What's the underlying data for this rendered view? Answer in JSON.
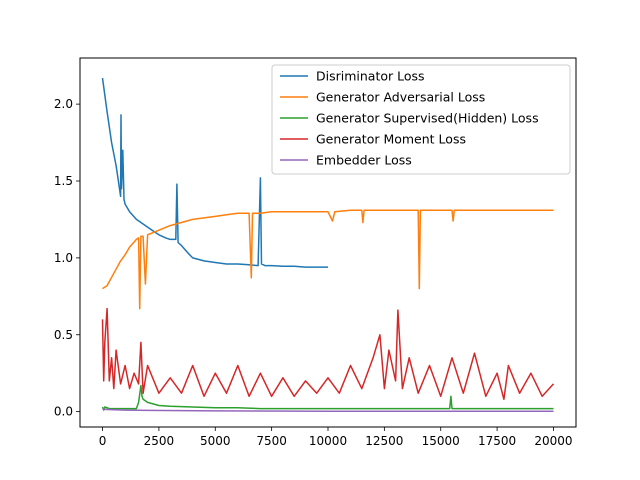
{
  "chart_data": {
    "type": "line",
    "title": "",
    "xlabel": "",
    "ylabel": "",
    "xlim": [
      -1000,
      21000
    ],
    "ylim": [
      -0.1,
      2.3
    ],
    "xticks": [
      0,
      2500,
      5000,
      7500,
      10000,
      12500,
      15000,
      17500,
      20000
    ],
    "xtick_labels": [
      "0",
      "2500",
      "5000",
      "7500",
      "10000",
      "12500",
      "15000",
      "17500",
      "20000"
    ],
    "yticks": [
      0.0,
      0.5,
      1.0,
      1.5,
      2.0
    ],
    "ytick_labels": [
      "0.0",
      "0.5",
      "1.0",
      "1.5",
      "2.0"
    ],
    "grid": false,
    "legend_position": "upper-right",
    "series": [
      {
        "name": "Disriminator Loss",
        "color": "#1f77b4",
        "x": [
          0,
          200,
          400,
          600,
          750,
          800,
          820,
          840,
          900,
          950,
          1000,
          1200,
          1500,
          1800,
          2000,
          2200,
          2500,
          2800,
          3000,
          3250,
          3300,
          3350,
          3500,
          3800,
          4000,
          4500,
          5000,
          5500,
          6000,
          6500,
          6900,
          7000,
          7050,
          7200,
          7500,
          8000,
          8500,
          9000,
          9500,
          10000
        ],
        "y": [
          2.17,
          1.95,
          1.75,
          1.6,
          1.45,
          1.4,
          1.93,
          1.45,
          1.7,
          1.38,
          1.35,
          1.3,
          1.25,
          1.22,
          1.2,
          1.18,
          1.15,
          1.13,
          1.12,
          1.12,
          1.48,
          1.1,
          1.08,
          1.03,
          1.0,
          0.98,
          0.97,
          0.96,
          0.96,
          0.955,
          0.95,
          1.52,
          0.96,
          0.95,
          0.95,
          0.945,
          0.945,
          0.94,
          0.94,
          0.94
        ]
      },
      {
        "name": "Generator Adversarial Loss",
        "color": "#ff7f0e",
        "x": [
          0,
          200,
          500,
          800,
          1000,
          1200,
          1500,
          1600,
          1650,
          1700,
          1800,
          1900,
          2000,
          2500,
          3000,
          3500,
          4000,
          4500,
          5000,
          5500,
          6000,
          6500,
          6600,
          6650,
          6700,
          7000,
          7500,
          8000,
          9000,
          10000,
          10200,
          10300,
          11000,
          11500,
          11550,
          11600,
          12000,
          13000,
          14000,
          14050,
          14100,
          14300,
          15000,
          15500,
          15550,
          15600,
          16000,
          17000,
          18000,
          19000,
          20000
        ],
        "y": [
          0.8,
          0.82,
          0.9,
          0.98,
          1.02,
          1.07,
          1.12,
          1.13,
          0.67,
          1.14,
          1.14,
          0.83,
          1.15,
          1.18,
          1.21,
          1.23,
          1.25,
          1.26,
          1.27,
          1.28,
          1.29,
          1.29,
          0.87,
          1.29,
          1.29,
          1.29,
          1.3,
          1.3,
          1.3,
          1.3,
          1.24,
          1.3,
          1.31,
          1.31,
          1.23,
          1.31,
          1.31,
          1.31,
          1.31,
          0.8,
          1.31,
          1.31,
          1.31,
          1.31,
          1.24,
          1.31,
          1.31,
          1.31,
          1.31,
          1.31,
          1.31
        ]
      },
      {
        "name": "Generator Supervised(Hidden) Loss",
        "color": "#2ca02c",
        "x": [
          0,
          50,
          100,
          300,
          600,
          1000,
          1500,
          1600,
          1700,
          1750,
          1800,
          2000,
          2500,
          3000,
          4000,
          5000,
          6000,
          7000,
          8000,
          10000,
          12000,
          14000,
          15000,
          15400,
          15450,
          15500,
          16000,
          18000,
          20000
        ],
        "y": [
          0.03,
          0.01,
          0.03,
          0.02,
          0.02,
          0.02,
          0.02,
          0.06,
          0.17,
          0.1,
          0.08,
          0.06,
          0.04,
          0.035,
          0.03,
          0.025,
          0.025,
          0.02,
          0.02,
          0.02,
          0.02,
          0.02,
          0.02,
          0.02,
          0.1,
          0.02,
          0.02,
          0.02,
          0.02
        ]
      },
      {
        "name": "Generator Moment Loss",
        "color": "#d62728",
        "x": [
          0,
          50,
          100,
          200,
          300,
          400,
          500,
          600,
          800,
          1000,
          1200,
          1400,
          1600,
          1700,
          1800,
          2000,
          2500,
          3000,
          3500,
          4000,
          4500,
          5000,
          5500,
          6000,
          6500,
          7000,
          7500,
          8000,
          8500,
          9000,
          9500,
          10000,
          10500,
          11000,
          11500,
          12000,
          12300,
          12500,
          12700,
          13000,
          13100,
          13300,
          13600,
          14000,
          14500,
          15000,
          15500,
          16000,
          16500,
          17000,
          17500,
          17800,
          18000,
          18500,
          19000,
          19500,
          20000
        ],
        "y": [
          0.6,
          0.2,
          0.45,
          0.67,
          0.2,
          0.35,
          0.15,
          0.4,
          0.18,
          0.3,
          0.15,
          0.25,
          0.18,
          0.45,
          0.12,
          0.3,
          0.12,
          0.22,
          0.12,
          0.3,
          0.1,
          0.25,
          0.12,
          0.3,
          0.1,
          0.25,
          0.1,
          0.22,
          0.1,
          0.2,
          0.12,
          0.22,
          0.12,
          0.3,
          0.15,
          0.35,
          0.5,
          0.15,
          0.4,
          0.2,
          0.66,
          0.15,
          0.35,
          0.12,
          0.3,
          0.1,
          0.35,
          0.12,
          0.38,
          0.1,
          0.25,
          0.08,
          0.3,
          0.12,
          0.25,
          0.1,
          0.18
        ]
      },
      {
        "name": "Embedder Loss",
        "color": "#9467bd",
        "x": [
          0,
          500,
          1000,
          2000,
          5000,
          10000,
          15000,
          20000
        ],
        "y": [
          0.015,
          0.012,
          0.01,
          0.008,
          0.005,
          0.003,
          0.003,
          0.003
        ]
      }
    ]
  }
}
